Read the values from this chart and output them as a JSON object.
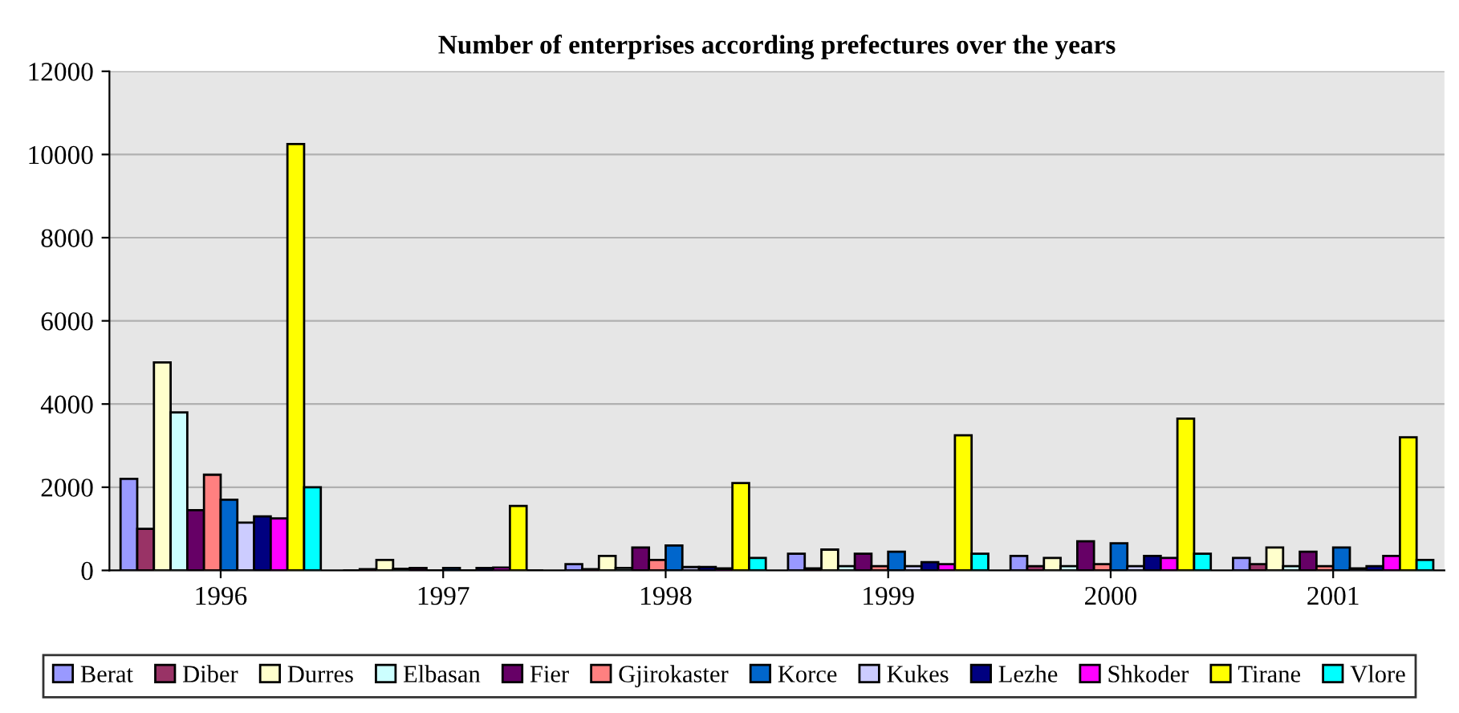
{
  "chart_data": {
    "type": "bar",
    "title": "Number of enterprises according prefectures over the years",
    "categories": [
      "1996",
      "1997",
      "1998",
      "1999",
      "2000",
      "2001"
    ],
    "series": [
      {
        "name": "Berat",
        "color": "#9999ff",
        "values": [
          2200,
          null,
          150,
          400,
          350,
          300
        ]
      },
      {
        "name": "Diber",
        "color": "#993366",
        "values": [
          1000,
          30,
          30,
          50,
          100,
          150
        ]
      },
      {
        "name": "Durres",
        "color": "#ffffcc",
        "values": [
          5000,
          250,
          350,
          500,
          300,
          550
        ]
      },
      {
        "name": "Elbasan",
        "color": "#ccffff",
        "values": [
          3800,
          40,
          60,
          100,
          100,
          100
        ]
      },
      {
        "name": "Fier",
        "color": "#660066",
        "values": [
          1450,
          60,
          550,
          400,
          700,
          450
        ]
      },
      {
        "name": "Gjirokaster",
        "color": "#ff8080",
        "values": [
          2300,
          null,
          250,
          100,
          150,
          100
        ]
      },
      {
        "name": "Korce",
        "color": "#0066cc",
        "values": [
          1700,
          60,
          600,
          450,
          650,
          550
        ]
      },
      {
        "name": "Kukes",
        "color": "#ccccff",
        "values": [
          1150,
          null,
          80,
          100,
          100,
          50
        ]
      },
      {
        "name": "Lezhe",
        "color": "#000080",
        "values": [
          1300,
          60,
          80,
          200,
          350,
          100
        ]
      },
      {
        "name": "Shkoder",
        "color": "#ff00ff",
        "values": [
          1250,
          70,
          50,
          150,
          300,
          350
        ]
      },
      {
        "name": "Tirane",
        "color": "#ffff00",
        "values": [
          10250,
          1550,
          2100,
          3250,
          3650,
          3200
        ]
      },
      {
        "name": "Vlore",
        "color": "#00ffff",
        "values": [
          2000,
          null,
          300,
          400,
          400,
          250
        ]
      }
    ],
    "ylim": [
      0,
      12000
    ],
    "yticks": [
      0,
      2000,
      4000,
      6000,
      8000,
      10000,
      12000
    ],
    "grid": "y",
    "legend": "bottom"
  }
}
